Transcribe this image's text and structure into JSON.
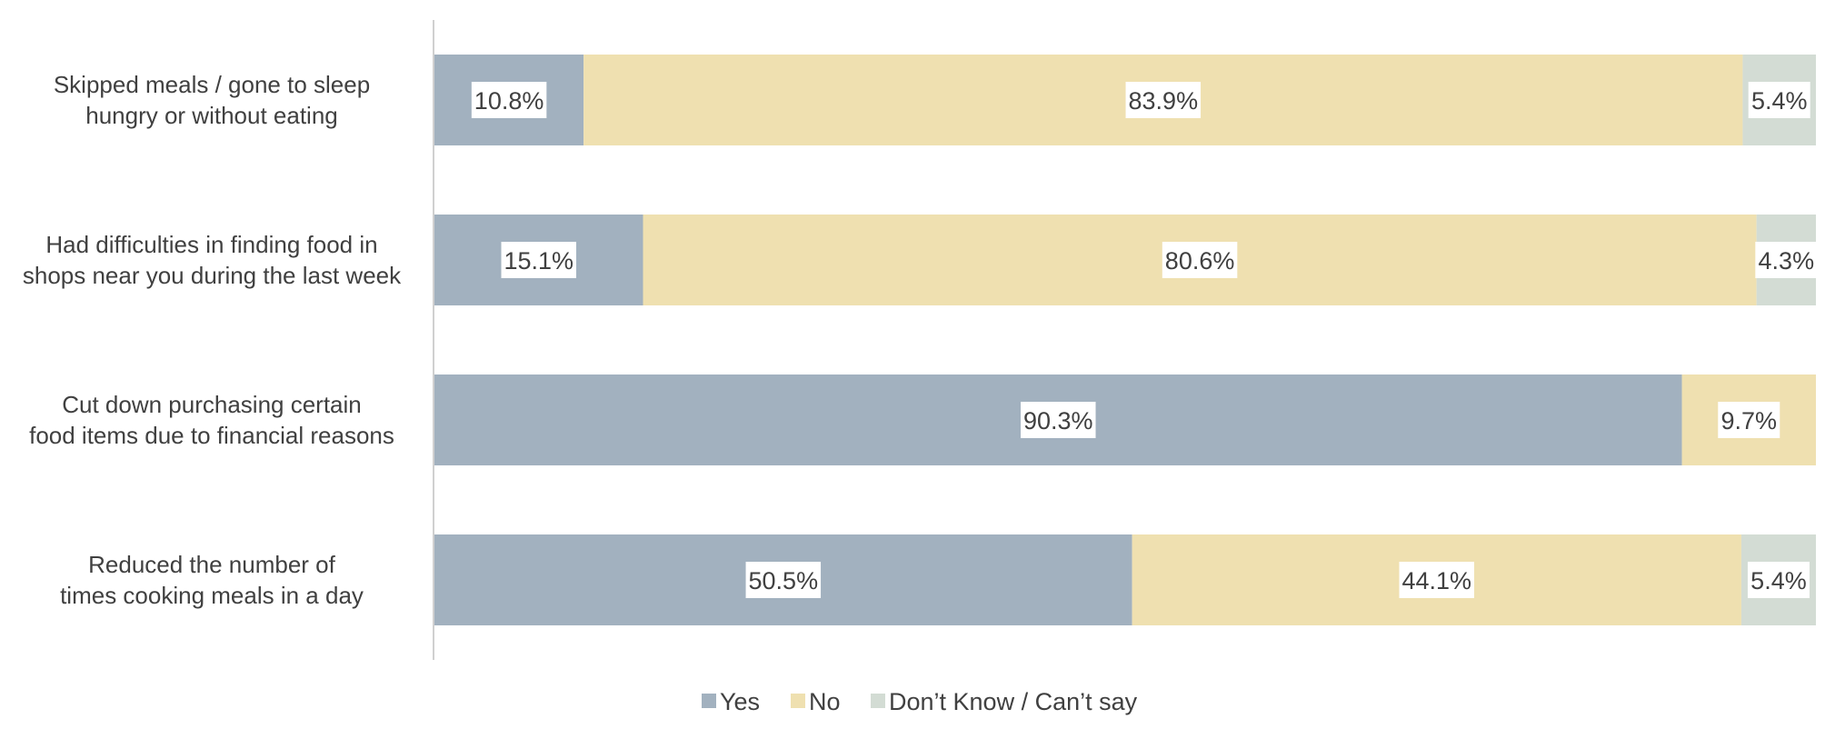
{
  "chart_data": {
    "type": "bar",
    "orientation": "horizontal",
    "stacked": true,
    "percent": true,
    "title": "",
    "xlabel": "",
    "ylabel": "",
    "xlim": [
      0,
      100
    ],
    "grid": false,
    "legend_position": "bottom",
    "categories": [
      [
        "Skipped meals / gone to sleep",
        "hungry or without eating"
      ],
      [
        "Had difficulties in finding food in",
        "shops near you during the last week"
      ],
      [
        "Cut down purchasing certain",
        "food items due to financial reasons"
      ],
      [
        "Reduced the number of",
        "times cooking meals in a day"
      ]
    ],
    "series": [
      {
        "name": "Yes",
        "color": "#a2b1bf",
        "values": [
          10.8,
          15.1,
          90.3,
          50.5
        ],
        "labels": [
          "10.8%",
          "15.1%",
          "90.3%",
          "50.5%"
        ]
      },
      {
        "name": "No",
        "color": "#efe0b0",
        "values": [
          83.9,
          80.6,
          9.7,
          44.1
        ],
        "labels": [
          "83.9%",
          "80.6%",
          "9.7%",
          "44.1%"
        ]
      },
      {
        "name": "Don’t Know / Can’t say",
        "color": "#d3dcd4",
        "values": [
          5.4,
          4.3,
          0,
          5.4
        ],
        "labels": [
          "5.4%",
          "4.3%",
          "",
          "5.4%"
        ]
      }
    ]
  }
}
